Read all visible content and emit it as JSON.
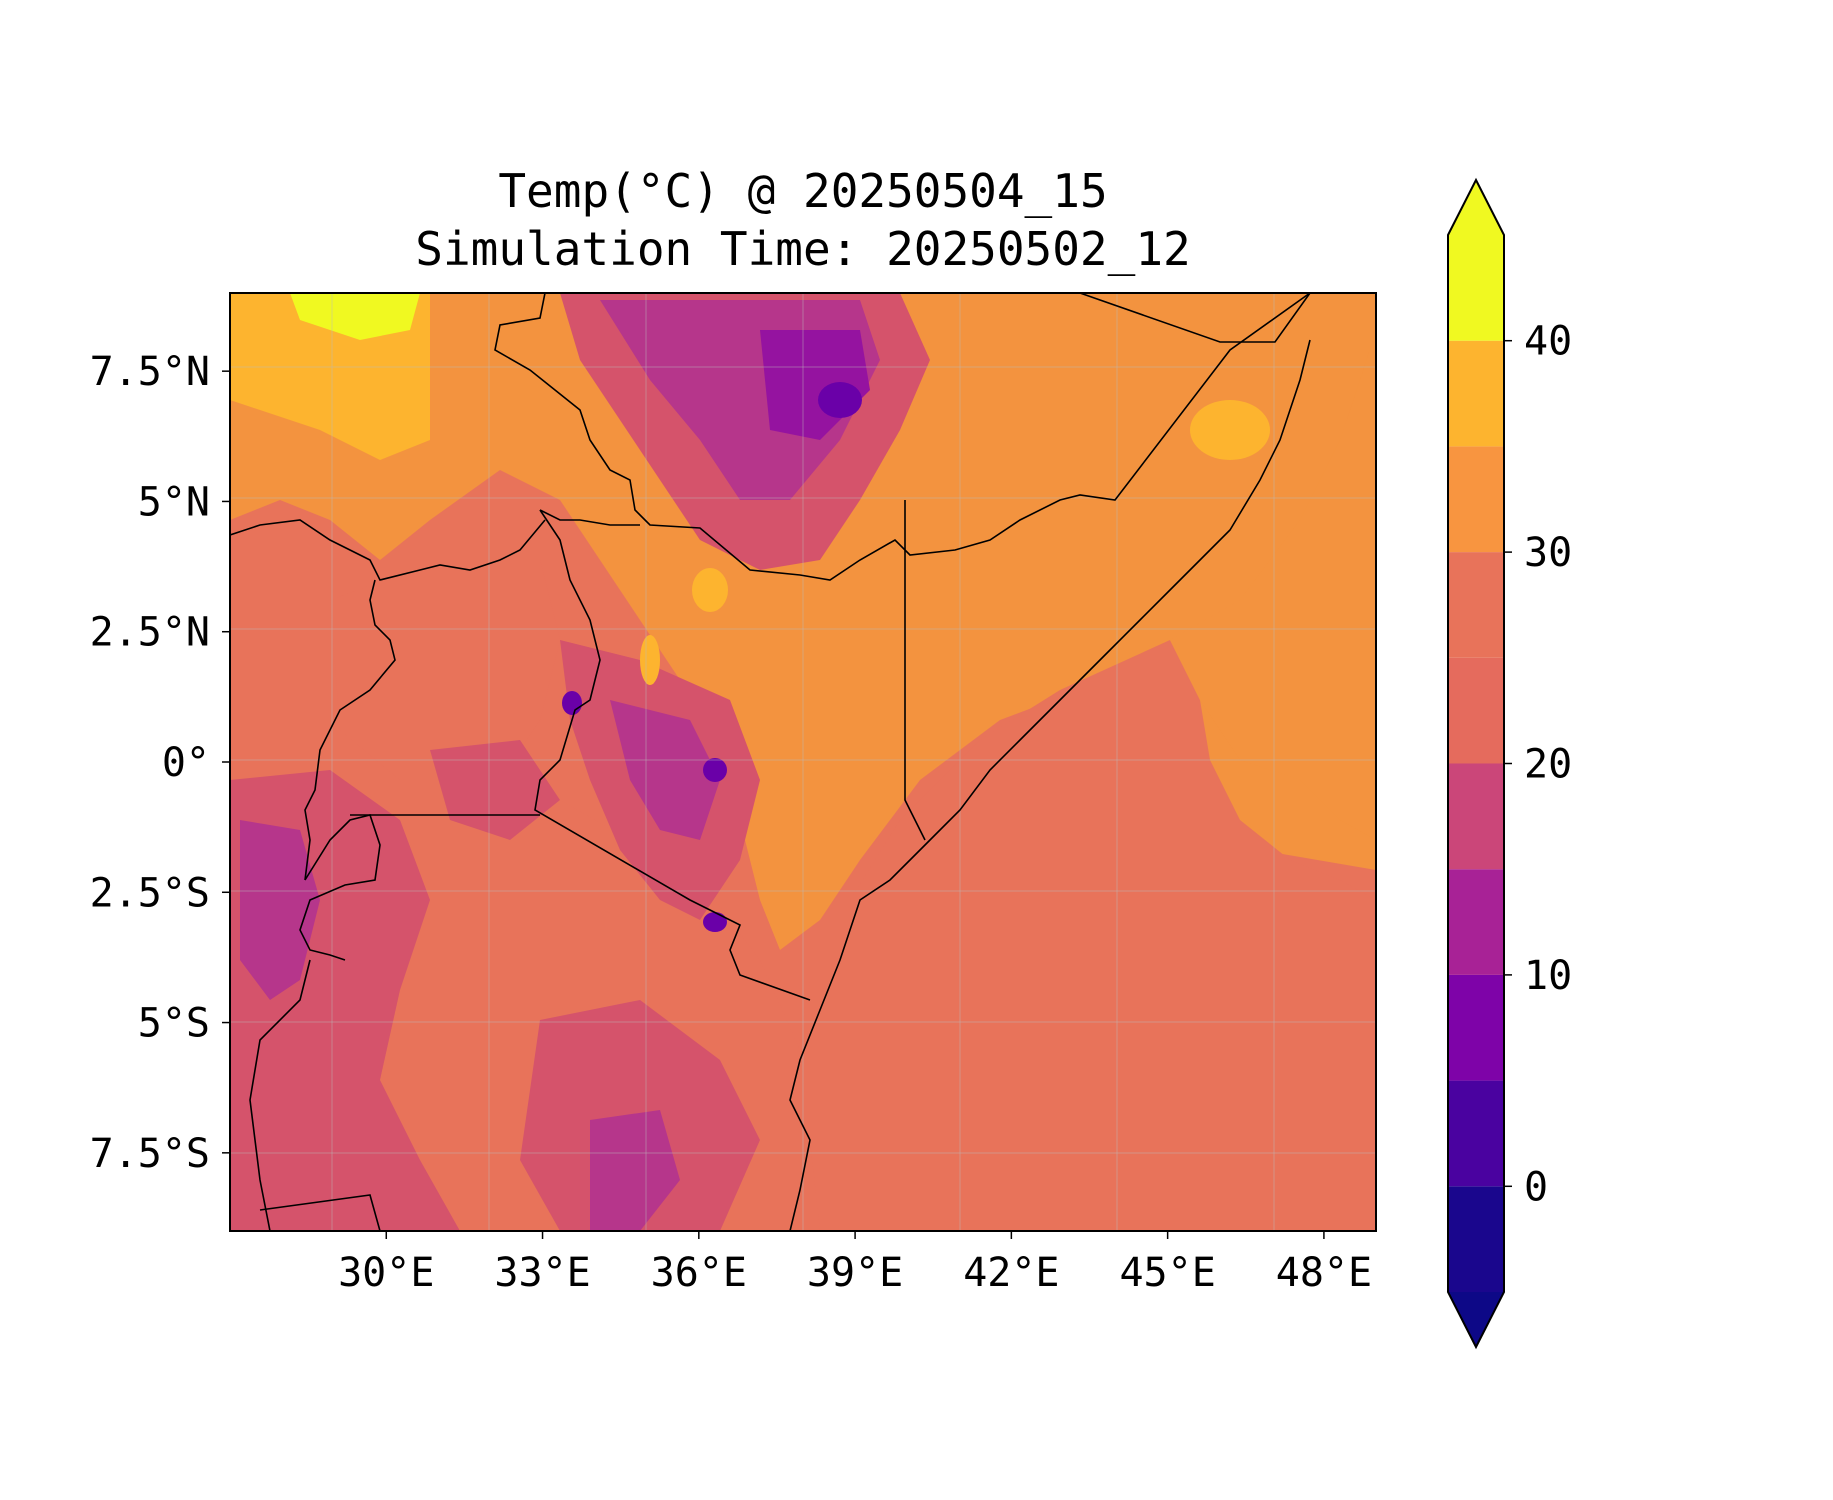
{
  "figure": {
    "title_line1": "Temp(°C) @ 20250504_15",
    "title_line2": "Simulation Time: 20250502_12"
  },
  "map": {
    "region": "East Africa",
    "lon_range": [
      27.0,
      49.0
    ],
    "lat_range": [
      -9.0,
      9.0
    ],
    "x_ticks": [
      {
        "value": 30,
        "label": "30°E"
      },
      {
        "value": 33,
        "label": "33°E"
      },
      {
        "value": 36,
        "label": "36°E"
      },
      {
        "value": 39,
        "label": "39°E"
      },
      {
        "value": 42,
        "label": "42°E"
      },
      {
        "value": 45,
        "label": "45°E"
      },
      {
        "value": 48,
        "label": "48°E"
      }
    ],
    "y_ticks": [
      {
        "value": 7.5,
        "label": "7.5°N"
      },
      {
        "value": 5,
        "label": "5°N"
      },
      {
        "value": 2.5,
        "label": "2.5°N"
      },
      {
        "value": 0,
        "label": "0°"
      },
      {
        "value": -2.5,
        "label": "2.5°S"
      },
      {
        "value": -5,
        "label": "5°S"
      },
      {
        "value": -7.5,
        "label": "7.5°S"
      }
    ],
    "gridlines": true,
    "colors": {
      "ocean_base": "#e8735a",
      "land_warm": "#f3933f",
      "highland_mid": "#d5536b",
      "highland_cool": "#b6368b",
      "highland_cold": "#9513a0",
      "very_cold": "#6a00a8",
      "hot": "#fdb42f",
      "hottest": "#f0f921",
      "border": "#000000"
    }
  },
  "colorbar": {
    "colormap": "plasma",
    "levels": [
      -5,
      0,
      5,
      10,
      15,
      20,
      25,
      30,
      35,
      40,
      45
    ],
    "colors": [
      "#1a068d",
      "#4a02a0",
      "#7e03a8",
      "#a82296",
      "#cb4679",
      "#e56b5d",
      "#e8735a",
      "#f89540",
      "#fdb42f",
      "#f0f921"
    ],
    "extend": "both",
    "under_color": "#0d0887",
    "over_color": "#f0f921",
    "ticks": [
      {
        "value": 0,
        "label": "0"
      },
      {
        "value": 10,
        "label": "10"
      },
      {
        "value": 20,
        "label": "20"
      },
      {
        "value": 30,
        "label": "30"
      },
      {
        "value": 40,
        "label": "40"
      }
    ]
  }
}
